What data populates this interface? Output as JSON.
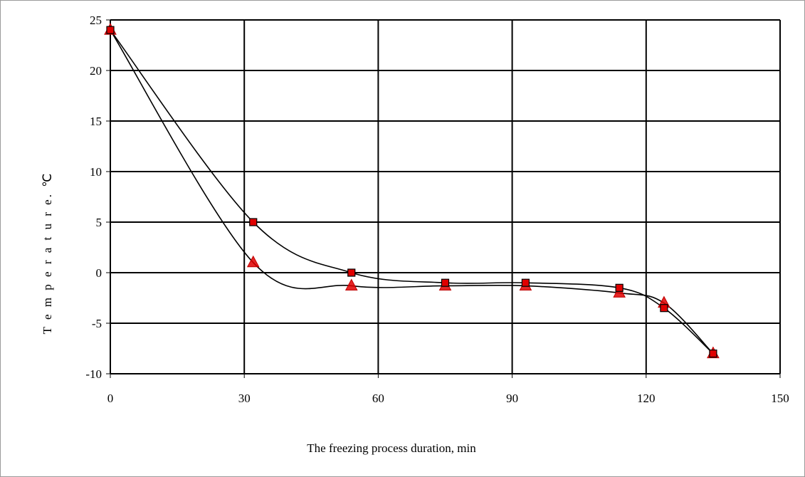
{
  "chart_data": {
    "type": "scatter",
    "xlabel": "The freezing process duration, min",
    "ylabel": "T e m p e r a t u r e.  ℃",
    "xlim": [
      0,
      150
    ],
    "ylim": [
      -10,
      25
    ],
    "xticks": [
      "0",
      "30",
      "60",
      "90",
      "120",
      "150"
    ],
    "yticks": [
      "-10",
      "-5",
      "0",
      "5",
      "10",
      "15",
      "20",
      "25"
    ],
    "grid": true,
    "legend": "none",
    "series": [
      {
        "marker": "square",
        "color": "#e00000",
        "points": [
          [
            0,
            24
          ],
          [
            32,
            5
          ],
          [
            54,
            0
          ],
          [
            75,
            -1
          ],
          [
            93,
            -1
          ],
          [
            114,
            -1.5
          ],
          [
            124,
            -3.5
          ],
          [
            135,
            -8
          ]
        ]
      },
      {
        "marker": "triangle",
        "color": "#e00000",
        "points": [
          [
            0,
            24
          ],
          [
            32,
            1
          ],
          [
            54,
            -1.3
          ],
          [
            75,
            -1.3
          ],
          [
            93,
            -1.3
          ],
          [
            114,
            -2
          ],
          [
            124,
            -3
          ],
          [
            135,
            -8
          ]
        ]
      }
    ]
  }
}
